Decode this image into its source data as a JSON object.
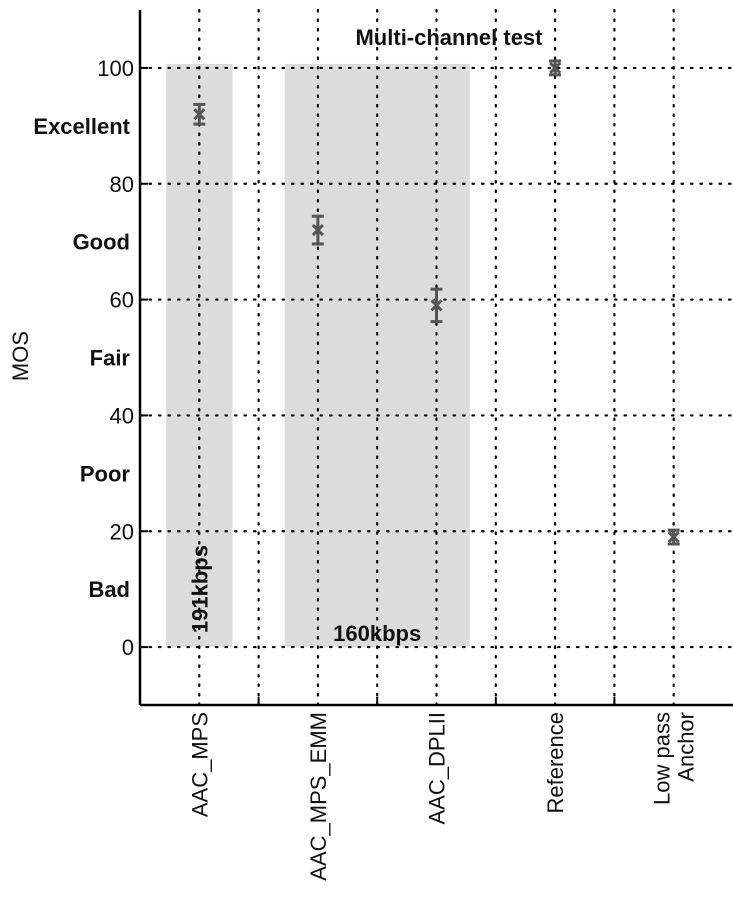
{
  "chart_data": {
    "type": "scatter",
    "title": "Multi-channel test",
    "ylabel": "MOS",
    "xlabel": "",
    "ylim": [
      -10,
      110
    ],
    "yticks": [
      0,
      20,
      40,
      60,
      80,
      100
    ],
    "quality_labels": [
      {
        "label": "Excellent",
        "y": 90
      },
      {
        "label": "Good",
        "y": 70
      },
      {
        "label": "Fair",
        "y": 50
      },
      {
        "label": "Poor",
        "y": 30
      },
      {
        "label": "Bad",
        "y": 10
      }
    ],
    "categories": [
      "AAC_MPS",
      "AAC_MPS_EMM",
      "AAC_DPLII",
      "Reference",
      "Low pass\nAnchor"
    ],
    "points": [
      {
        "category": "AAC_MPS",
        "mean": 92,
        "low": 90.3,
        "high": 93.7
      },
      {
        "category": "AAC_MPS_EMM",
        "mean": 72,
        "low": 69.6,
        "high": 74.4
      },
      {
        "category": "AAC_DPLII",
        "mean": 59,
        "low": 56.2,
        "high": 61.8
      },
      {
        "category": "Reference",
        "mean": 100,
        "low": 98.8,
        "high": 101.2
      },
      {
        "category": "Low pass\nAnchor",
        "mean": 19,
        "low": 17.8,
        "high": 20.2
      }
    ],
    "bitrate_regions": [
      {
        "label": "191kbps",
        "from": "AAC_MPS",
        "to": "AAC_MPS",
        "orientation": "vertical"
      },
      {
        "label": "160kbps",
        "from": "AAC_MPS_EMM",
        "to": "AAC_DPLII",
        "orientation": "horizontal"
      }
    ],
    "grid": true,
    "colors": {
      "marker": "#555555",
      "region": "#dcdcdc",
      "axis": "#000000"
    }
  }
}
